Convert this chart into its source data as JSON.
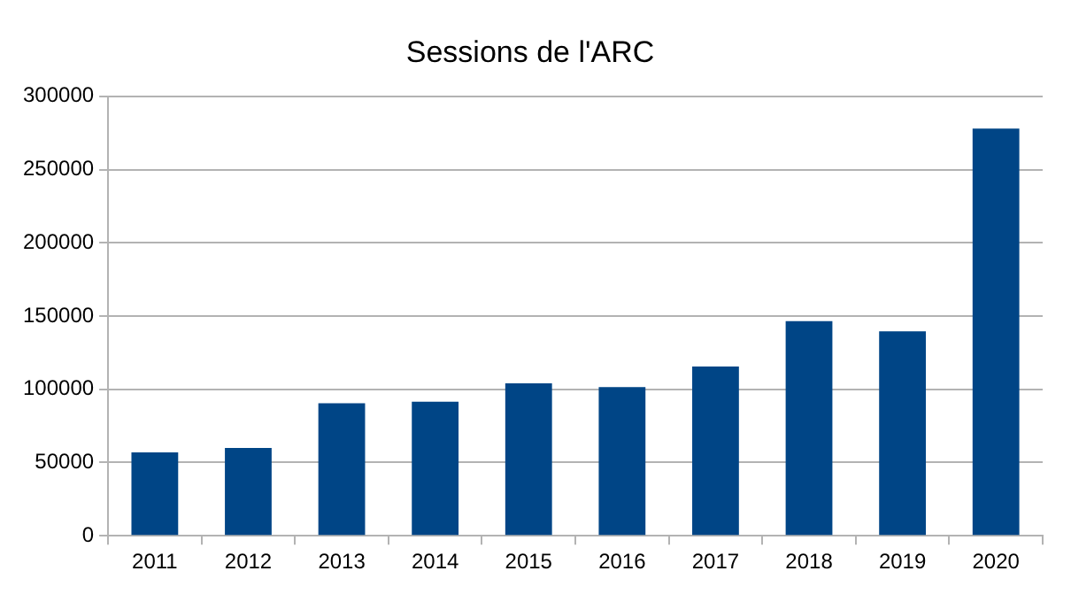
{
  "chart_data": {
    "type": "bar",
    "title": "Sessions de l'ARC",
    "categories": [
      "2011",
      "2012",
      "2013",
      "2014",
      "2015",
      "2016",
      "2017",
      "2018",
      "2019",
      "2020"
    ],
    "values": [
      57000,
      60000,
      90500,
      91500,
      104000,
      101500,
      115500,
      146500,
      139500,
      278000
    ],
    "color": "#004586",
    "ylim": [
      0,
      300000
    ],
    "yticks": [
      0,
      50000,
      100000,
      150000,
      200000,
      250000,
      300000
    ],
    "grid": "y",
    "legend": false
  }
}
